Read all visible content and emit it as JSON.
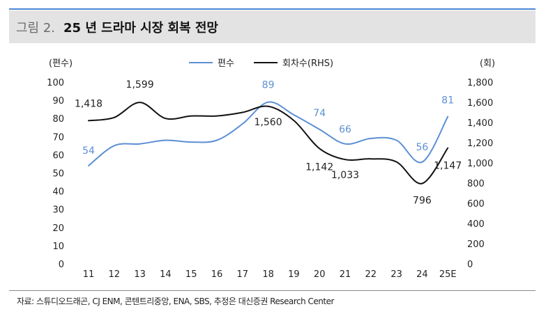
{
  "header": {
    "figure_label": "그림 2.",
    "title": "25 년 드라마 시장 회복 전망"
  },
  "source_note": "자료: 스튜디오드래곤, CJ ENM, 콘텐트리중앙, ENA, SBS, 추정은 대신증권 Research Center",
  "colors": {
    "left_series": "#5b8fd4",
    "right_series": "#111111",
    "title_bar": "#e3e3e3",
    "accent_rule": "#4a86d6"
  },
  "chart_data": {
    "type": "line",
    "categories": [
      "11",
      "12",
      "13",
      "14",
      "15",
      "16",
      "17",
      "18",
      "19",
      "20",
      "21",
      "22",
      "23",
      "24",
      "25E"
    ],
    "left_axis_label": "(편수)",
    "right_axis_label": "(회)",
    "left_ylim": [
      0,
      100
    ],
    "right_ylim": [
      0,
      1800
    ],
    "left_ticks": [
      "0",
      "10",
      "20",
      "30",
      "40",
      "50",
      "60",
      "70",
      "80",
      "90",
      "100"
    ],
    "right_ticks": [
      "0",
      "200",
      "400",
      "600",
      "800",
      "1,000",
      "1,200",
      "1,400",
      "1,600",
      "1,800"
    ],
    "legend_position": "top-center",
    "grid": false,
    "series": [
      {
        "name": "편수",
        "axis": "left",
        "color": "#5b8fd4",
        "values": [
          54,
          65,
          66,
          68,
          67,
          68,
          77,
          89,
          82,
          74,
          66,
          69,
          68,
          56,
          81
        ],
        "labels": [
          {
            "index": 0,
            "text": "54"
          },
          {
            "index": 7,
            "text": "89"
          },
          {
            "index": 9,
            "text": "74"
          },
          {
            "index": 10,
            "text": "66"
          },
          {
            "index": 13,
            "text": "56"
          },
          {
            "index": 14,
            "text": "81"
          }
        ]
      },
      {
        "name": "회차수(RHS)",
        "axis": "right",
        "color": "#111111",
        "values": [
          1418,
          1450,
          1599,
          1440,
          1465,
          1465,
          1500,
          1560,
          1420,
          1142,
          1033,
          1040,
          1010,
          796,
          1147
        ],
        "labels": [
          {
            "index": 0,
            "text": "1,418"
          },
          {
            "index": 2,
            "text": "1,599"
          },
          {
            "index": 7,
            "text": "1,560"
          },
          {
            "index": 9,
            "text": "1,142"
          },
          {
            "index": 10,
            "text": "1,033"
          },
          {
            "index": 13,
            "text": "796"
          },
          {
            "index": 14,
            "text": "1,147"
          }
        ]
      }
    ]
  }
}
